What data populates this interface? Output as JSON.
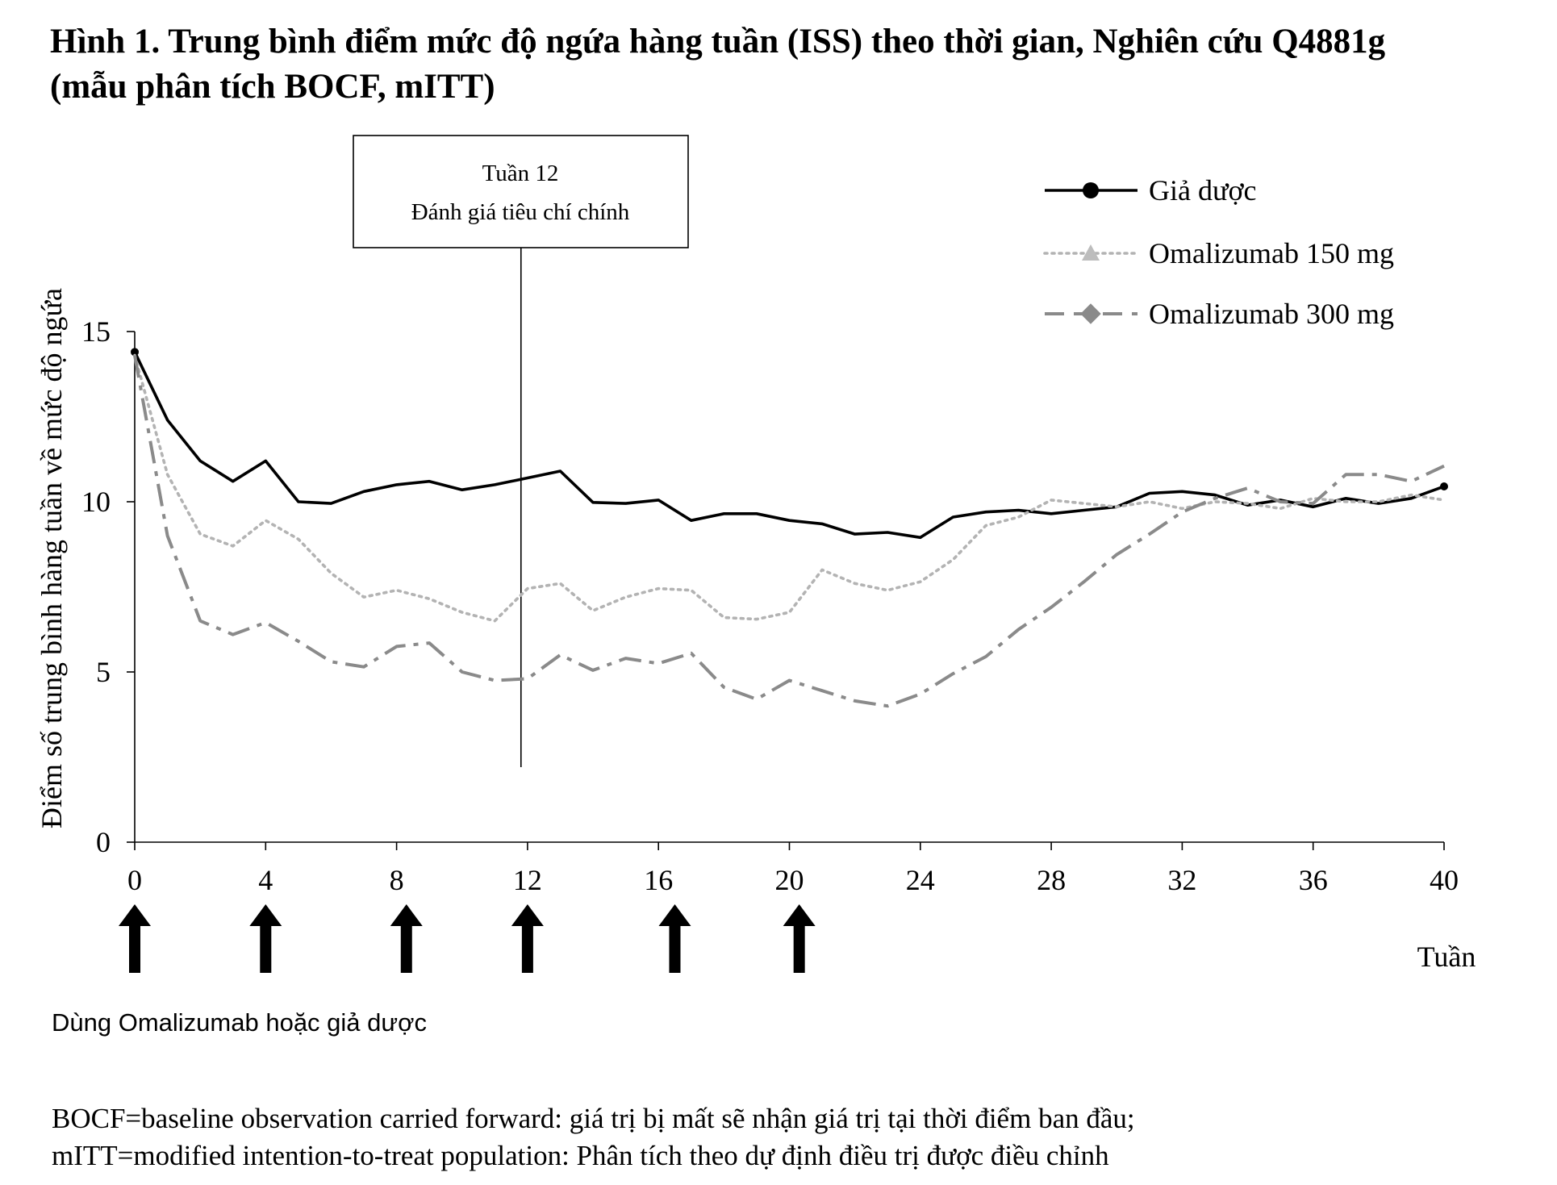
{
  "figure": {
    "title_line1": "Hình 1. Trung bình điểm mức độ ngứa hàng tuần (ISS) theo thời gian, Nghiên cứu Q4881g",
    "title_line2": "(mẫu phân tích BOCF, mITT)",
    "dosing_note": "Dùng Omalizumab hoặc giả dược",
    "footnote_line1": "BOCF=baseline observation carried forward: giá trị bị mất sẽ nhận giá trị tại thời điểm ban đầu;",
    "footnote_line2": "mITT=modified intention-to-treat population: Phân tích theo dự định điều trị được điều chỉnh"
  },
  "chart_data": {
    "type": "line",
    "ylabel": "Điểm số trung bình hàng tuần về mức độ ngứa",
    "xlabel": "Tuần",
    "xlim": [
      0,
      40
    ],
    "ylim": [
      0,
      15
    ],
    "xticks": [
      0,
      4,
      8,
      12,
      16,
      20,
      24,
      28,
      32,
      36,
      40
    ],
    "yticks": [
      0,
      5,
      10,
      15
    ],
    "legend_position": "top-right",
    "annotation": {
      "line1": "Tuần 12",
      "line2": "Đánh giá tiêu chí chính",
      "x": 11.8
    },
    "dose_arrows_x": [
      0,
      4,
      8.3,
      12,
      16.5,
      20.3
    ],
    "x": [
      0,
      1,
      2,
      3,
      4,
      5,
      6,
      7,
      8,
      9,
      10,
      11,
      12,
      13,
      14,
      15,
      16,
      17,
      18,
      19,
      20,
      21,
      22,
      23,
      24,
      25,
      26,
      27,
      28,
      29,
      30,
      31,
      32,
      33,
      34,
      35,
      36,
      37,
      38,
      39,
      40
    ],
    "series": [
      {
        "name": "Giả dược",
        "color": "#000000",
        "style": "solid-marker",
        "values": [
          14.4,
          12.4,
          11.2,
          10.6,
          11.2,
          10.0,
          9.95,
          10.3,
          10.5,
          10.6,
          10.35,
          10.5,
          10.7,
          10.9,
          9.98,
          9.95,
          10.05,
          9.45,
          9.65,
          9.65,
          9.45,
          9.35,
          9.05,
          9.1,
          8.95,
          9.55,
          9.7,
          9.75,
          9.65,
          9.75,
          9.85,
          10.25,
          10.3,
          10.2,
          9.9,
          10.05,
          9.85,
          10.1,
          9.95,
          10.1,
          10.45
        ]
      },
      {
        "name": "Omalizumab 150 mg",
        "color": "#b3b3b3",
        "style": "dotted",
        "values": [
          14.3,
          10.8,
          9.05,
          8.7,
          9.45,
          8.9,
          7.9,
          7.2,
          7.4,
          7.15,
          6.75,
          6.5,
          7.45,
          7.6,
          6.8,
          7.2,
          7.45,
          7.4,
          6.6,
          6.55,
          6.75,
          8.0,
          7.6,
          7.4,
          7.65,
          8.3,
          9.3,
          9.55,
          10.05,
          9.95,
          9.85,
          10.0,
          9.8,
          10.0,
          9.95,
          9.8,
          10.1,
          10.0,
          10.0,
          10.2,
          10.05
        ]
      },
      {
        "name": "Omalizumab 300 mg",
        "color": "#8a8a8a",
        "style": "dash-dot",
        "values": [
          14.3,
          9.0,
          6.5,
          6.1,
          6.45,
          5.9,
          5.3,
          5.15,
          5.75,
          5.85,
          5.0,
          4.75,
          4.8,
          5.5,
          5.05,
          5.4,
          5.25,
          5.55,
          4.55,
          4.2,
          4.75,
          4.45,
          4.15,
          4.0,
          4.35,
          4.95,
          5.45,
          6.25,
          6.9,
          7.65,
          8.45,
          9.05,
          9.7,
          10.1,
          10.4,
          10.0,
          9.95,
          10.8,
          10.8,
          10.6,
          11.05
        ]
      }
    ]
  }
}
